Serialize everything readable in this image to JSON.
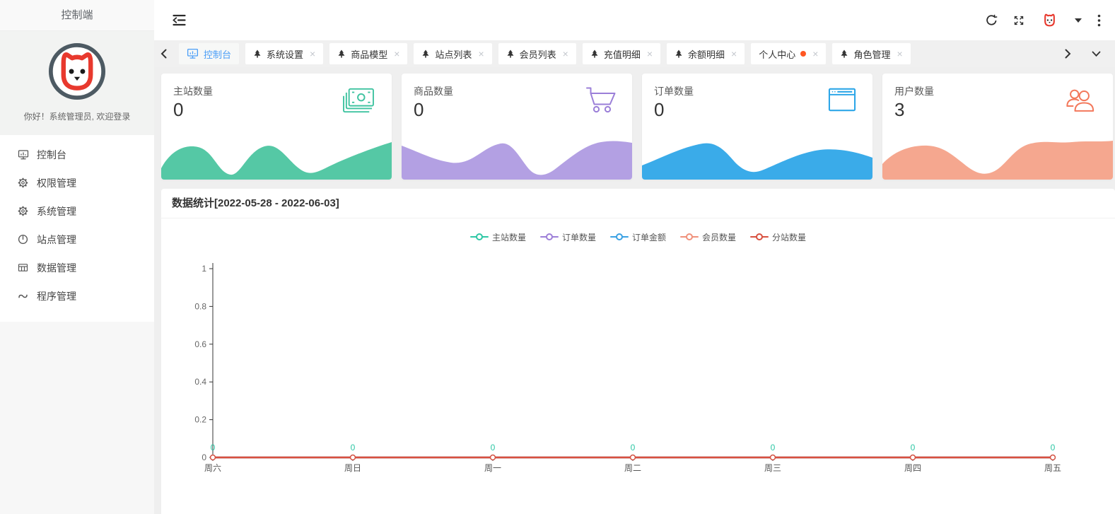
{
  "sidebar": {
    "title": "控制端",
    "greeting": "你好！系统管理员, 欢迎登录",
    "logo_icon": "cat-logo",
    "items": [
      {
        "icon": "dashboard-icon",
        "label": "控制台"
      },
      {
        "icon": "gear-icon",
        "label": "权限管理"
      },
      {
        "icon": "gear-icon",
        "label": "系统管理"
      },
      {
        "icon": "clock-icon",
        "label": "站点管理"
      },
      {
        "icon": "table-icon",
        "label": "数据管理"
      },
      {
        "icon": "wave-icon",
        "label": "程序管理"
      }
    ]
  },
  "navbar": {
    "icons": [
      "collapse-icon",
      "refresh-icon",
      "fullscreen-icon",
      "avatar",
      "caret-down-icon",
      "more-icon"
    ]
  },
  "tabbar": {
    "tabs": [
      {
        "label": "控制台",
        "icon": "dashboard-icon",
        "active": true,
        "closable": false,
        "dot": false
      },
      {
        "label": "系统设置",
        "icon": "tree-icon",
        "active": false,
        "closable": true,
        "dot": false
      },
      {
        "label": "商品模型",
        "icon": "tree-icon",
        "active": false,
        "closable": true,
        "dot": false
      },
      {
        "label": "站点列表",
        "icon": "tree-icon",
        "active": false,
        "closable": true,
        "dot": false
      },
      {
        "label": "会员列表",
        "icon": "tree-icon",
        "active": false,
        "closable": true,
        "dot": false
      },
      {
        "label": "充值明细",
        "icon": "tree-icon",
        "active": false,
        "closable": true,
        "dot": false
      },
      {
        "label": "余额明细",
        "icon": "tree-icon",
        "active": false,
        "closable": true,
        "dot": false
      },
      {
        "label": "个人中心",
        "icon": null,
        "active": false,
        "closable": true,
        "dot": true
      },
      {
        "label": "角色管理",
        "icon": "tree-icon",
        "active": false,
        "closable": true,
        "dot": false
      }
    ]
  },
  "stat_cards": [
    {
      "label": "主站数量",
      "value": "0",
      "icon": "money-icon",
      "icon_color": "#3fc3a0",
      "wave_color": "#55c8a5"
    },
    {
      "label": "商品数量",
      "value": "0",
      "icon": "cart-icon",
      "icon_color": "#9b7fd8",
      "wave_color": "#b3a0e3"
    },
    {
      "label": "订单数量",
      "value": "0",
      "icon": "browser-icon",
      "icon_color": "#2ea7e8",
      "wave_color": "#3aabe9"
    },
    {
      "label": "用户数量",
      "value": "3",
      "icon": "users-icon",
      "icon_color": "#f3785b",
      "wave_color": "#f5a78f"
    }
  ],
  "panel": {
    "title": "数据统计[2022-05-28 - 2022-06-03]"
  },
  "chart_data": {
    "type": "line",
    "x": [
      "周六",
      "周日",
      "周一",
      "周二",
      "周三",
      "周四",
      "周五"
    ],
    "series": [
      {
        "name": "主站数量",
        "color": "#2ec7a5",
        "values": [
          0,
          0,
          0,
          0,
          0,
          0,
          0
        ],
        "show_labels": true
      },
      {
        "name": "订单数量",
        "color": "#9d7fd8",
        "values": [
          0,
          0,
          0,
          0,
          0,
          0,
          0
        ],
        "show_labels": false
      },
      {
        "name": "订单金额",
        "color": "#3aa1e3",
        "values": [
          0,
          0,
          0,
          0,
          0,
          0,
          0
        ],
        "show_labels": false
      },
      {
        "name": "会员数量",
        "color": "#f0917b",
        "values": [
          0,
          0,
          0,
          0,
          0,
          0,
          0
        ],
        "show_labels": false
      },
      {
        "name": "分站数量",
        "color": "#d8503f",
        "values": [
          0,
          0,
          0,
          0,
          0,
          0,
          0
        ],
        "show_labels": false
      }
    ],
    "ylim": [
      0,
      1
    ],
    "yticks": [
      0,
      0.2,
      0.4,
      0.6,
      0.8,
      1
    ],
    "legend_position": "top",
    "grid": false,
    "axis_color": "#333333",
    "tick_label_color": "#666666"
  }
}
